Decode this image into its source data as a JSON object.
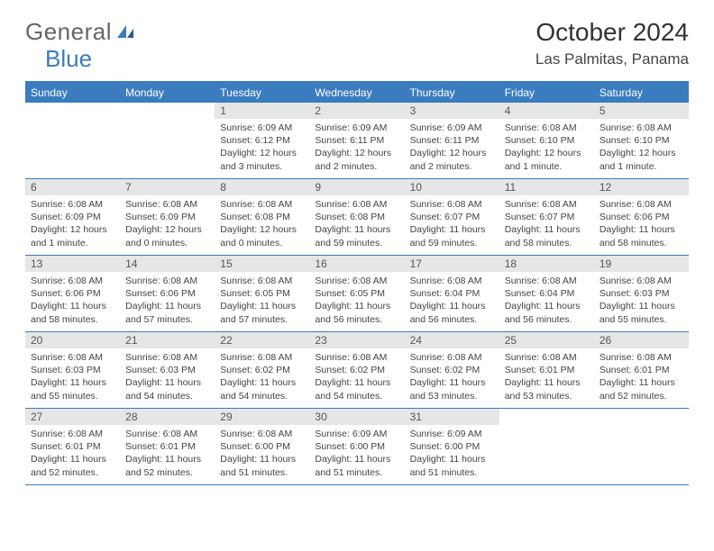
{
  "logo": {
    "text1": "General",
    "text2": "Blue"
  },
  "title": "October 2024",
  "location": "Las Palmitas, Panama",
  "weekdays": [
    "Sunday",
    "Monday",
    "Tuesday",
    "Wednesday",
    "Thursday",
    "Friday",
    "Saturday"
  ],
  "colors": {
    "brand_blue": "#3b7cbf",
    "daynum_bg": "#e6e6e6",
    "text": "#333333",
    "bg": "#ffffff"
  },
  "weeks": [
    [
      {
        "num": "",
        "text": ""
      },
      {
        "num": "",
        "text": ""
      },
      {
        "num": "1",
        "text": "Sunrise: 6:09 AM\nSunset: 6:12 PM\nDaylight: 12 hours and 3 minutes."
      },
      {
        "num": "2",
        "text": "Sunrise: 6:09 AM\nSunset: 6:11 PM\nDaylight: 12 hours and 2 minutes."
      },
      {
        "num": "3",
        "text": "Sunrise: 6:09 AM\nSunset: 6:11 PM\nDaylight: 12 hours and 2 minutes."
      },
      {
        "num": "4",
        "text": "Sunrise: 6:08 AM\nSunset: 6:10 PM\nDaylight: 12 hours and 1 minute."
      },
      {
        "num": "5",
        "text": "Sunrise: 6:08 AM\nSunset: 6:10 PM\nDaylight: 12 hours and 1 minute."
      }
    ],
    [
      {
        "num": "6",
        "text": "Sunrise: 6:08 AM\nSunset: 6:09 PM\nDaylight: 12 hours and 1 minute."
      },
      {
        "num": "7",
        "text": "Sunrise: 6:08 AM\nSunset: 6:09 PM\nDaylight: 12 hours and 0 minutes."
      },
      {
        "num": "8",
        "text": "Sunrise: 6:08 AM\nSunset: 6:08 PM\nDaylight: 12 hours and 0 minutes."
      },
      {
        "num": "9",
        "text": "Sunrise: 6:08 AM\nSunset: 6:08 PM\nDaylight: 11 hours and 59 minutes."
      },
      {
        "num": "10",
        "text": "Sunrise: 6:08 AM\nSunset: 6:07 PM\nDaylight: 11 hours and 59 minutes."
      },
      {
        "num": "11",
        "text": "Sunrise: 6:08 AM\nSunset: 6:07 PM\nDaylight: 11 hours and 58 minutes."
      },
      {
        "num": "12",
        "text": "Sunrise: 6:08 AM\nSunset: 6:06 PM\nDaylight: 11 hours and 58 minutes."
      }
    ],
    [
      {
        "num": "13",
        "text": "Sunrise: 6:08 AM\nSunset: 6:06 PM\nDaylight: 11 hours and 58 minutes."
      },
      {
        "num": "14",
        "text": "Sunrise: 6:08 AM\nSunset: 6:06 PM\nDaylight: 11 hours and 57 minutes."
      },
      {
        "num": "15",
        "text": "Sunrise: 6:08 AM\nSunset: 6:05 PM\nDaylight: 11 hours and 57 minutes."
      },
      {
        "num": "16",
        "text": "Sunrise: 6:08 AM\nSunset: 6:05 PM\nDaylight: 11 hours and 56 minutes."
      },
      {
        "num": "17",
        "text": "Sunrise: 6:08 AM\nSunset: 6:04 PM\nDaylight: 11 hours and 56 minutes."
      },
      {
        "num": "18",
        "text": "Sunrise: 6:08 AM\nSunset: 6:04 PM\nDaylight: 11 hours and 56 minutes."
      },
      {
        "num": "19",
        "text": "Sunrise: 6:08 AM\nSunset: 6:03 PM\nDaylight: 11 hours and 55 minutes."
      }
    ],
    [
      {
        "num": "20",
        "text": "Sunrise: 6:08 AM\nSunset: 6:03 PM\nDaylight: 11 hours and 55 minutes."
      },
      {
        "num": "21",
        "text": "Sunrise: 6:08 AM\nSunset: 6:03 PM\nDaylight: 11 hours and 54 minutes."
      },
      {
        "num": "22",
        "text": "Sunrise: 6:08 AM\nSunset: 6:02 PM\nDaylight: 11 hours and 54 minutes."
      },
      {
        "num": "23",
        "text": "Sunrise: 6:08 AM\nSunset: 6:02 PM\nDaylight: 11 hours and 54 minutes."
      },
      {
        "num": "24",
        "text": "Sunrise: 6:08 AM\nSunset: 6:02 PM\nDaylight: 11 hours and 53 minutes."
      },
      {
        "num": "25",
        "text": "Sunrise: 6:08 AM\nSunset: 6:01 PM\nDaylight: 11 hours and 53 minutes."
      },
      {
        "num": "26",
        "text": "Sunrise: 6:08 AM\nSunset: 6:01 PM\nDaylight: 11 hours and 52 minutes."
      }
    ],
    [
      {
        "num": "27",
        "text": "Sunrise: 6:08 AM\nSunset: 6:01 PM\nDaylight: 11 hours and 52 minutes."
      },
      {
        "num": "28",
        "text": "Sunrise: 6:08 AM\nSunset: 6:01 PM\nDaylight: 11 hours and 52 minutes."
      },
      {
        "num": "29",
        "text": "Sunrise: 6:08 AM\nSunset: 6:00 PM\nDaylight: 11 hours and 51 minutes."
      },
      {
        "num": "30",
        "text": "Sunrise: 6:09 AM\nSunset: 6:00 PM\nDaylight: 11 hours and 51 minutes."
      },
      {
        "num": "31",
        "text": "Sunrise: 6:09 AM\nSunset: 6:00 PM\nDaylight: 11 hours and 51 minutes."
      },
      {
        "num": "",
        "text": ""
      },
      {
        "num": "",
        "text": ""
      }
    ]
  ]
}
